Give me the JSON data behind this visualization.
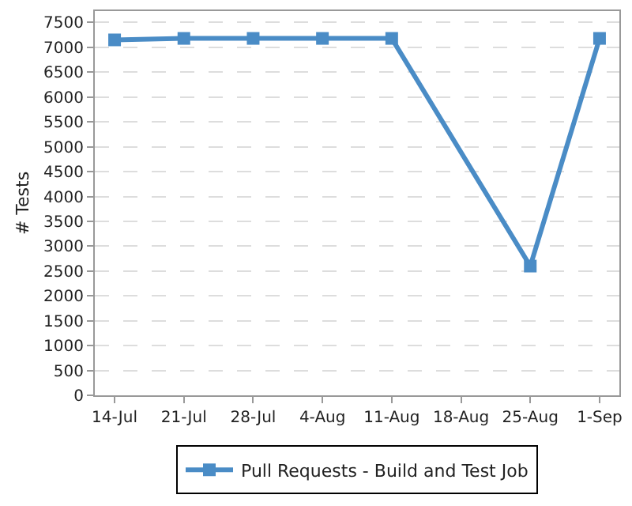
{
  "chart_data": {
    "type": "line",
    "ylabel": "# Tests",
    "x": [
      "--07-14",
      "--07-21",
      "--07-28",
      "--08-04",
      "--08-11",
      "--08-25",
      "--09-01"
    ],
    "series": [
      {
        "name": "Pull Requests - Build and Test Job",
        "color": "#4a8cc6",
        "values": [
          7150,
          7180,
          7180,
          7180,
          7180,
          2600,
          7180
        ]
      }
    ],
    "xlim": [
      "--07-12",
      "--09-03"
    ],
    "xticks": [
      {
        "value": "--07-14",
        "label": "14-Jul"
      },
      {
        "value": "--07-21",
        "label": "21-Jul"
      },
      {
        "value": "--07-28",
        "label": "28-Jul"
      },
      {
        "value": "--08-04",
        "label": "4-Aug"
      },
      {
        "value": "--08-11",
        "label": "11-Aug"
      },
      {
        "value": "--08-18",
        "label": "18-Aug"
      },
      {
        "value": "--08-25",
        "label": "25-Aug"
      },
      {
        "value": "--09-01",
        "label": "1-Sep"
      }
    ],
    "ylim": [
      0,
      7730
    ],
    "yticks": [
      0,
      500,
      1000,
      1500,
      2000,
      2500,
      3000,
      3500,
      4000,
      4500,
      5000,
      5500,
      6000,
      6500,
      7000,
      7500
    ],
    "grid": "y",
    "legend": "bottom",
    "marker": "square",
    "line_style": "solid"
  }
}
